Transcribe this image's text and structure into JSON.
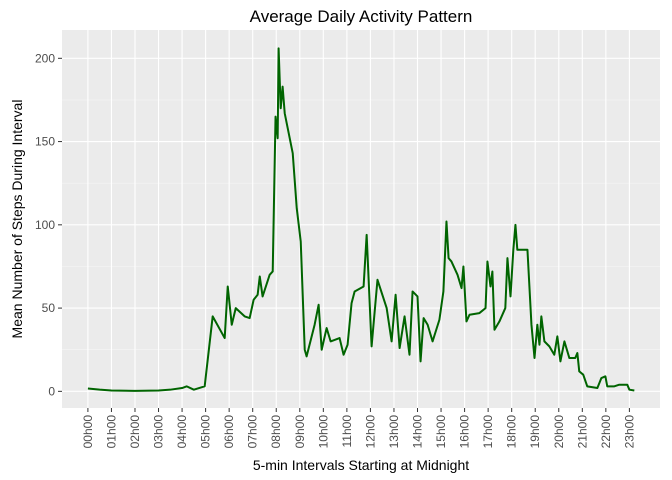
{
  "chart_data": {
    "type": "line",
    "title": "Average Daily Activity Pattern",
    "x_label": "5-min Intervals Starting at Midnight",
    "y_label": "Mean Number of Steps During Interval",
    "color": "#006400",
    "x": [
      0,
      0.5,
      1,
      2,
      3,
      3.5,
      4,
      4.2,
      4.5,
      4.96,
      5.3,
      5.81,
      5.94,
      6.11,
      6.28,
      6.66,
      6.87,
      7.04,
      7.21,
      7.3,
      7.42,
      7.72,
      7.85,
      7.97,
      8.06,
      8.1,
      8.19,
      8.27,
      8.36,
      8.7,
      8.87,
      9.04,
      9.21,
      9.29,
      9.63,
      9.8,
      9.93,
      10.14,
      10.31,
      10.69,
      10.86,
      11.03,
      11.2,
      11.33,
      11.71,
      11.79,
      11.84,
      12.05,
      12.3,
      12.69,
      12.9,
      13.07,
      13.24,
      13.45,
      13.66,
      13.79,
      14.0,
      14.13,
      14.26,
      14.43,
      14.64,
      14.93,
      15.1,
      15.23,
      15.32,
      15.44,
      15.7,
      15.87,
      15.95,
      16.08,
      16.21,
      16.63,
      16.89,
      16.97,
      17.1,
      17.18,
      17.27,
      17.48,
      17.73,
      17.82,
      17.95,
      18.07,
      18.16,
      18.24,
      18.67,
      18.84,
      18.97,
      19.09,
      19.18,
      19.26,
      19.39,
      19.6,
      19.81,
      19.94,
      20.07,
      20.24,
      20.45,
      20.7,
      20.79,
      20.87,
      21.04,
      21.21,
      21.64,
      21.81,
      21.98,
      22.06,
      22.36,
      22.57,
      22.91,
      23.0,
      23.21
    ],
    "values": [
      1.7,
      1,
      0.5,
      0.3,
      0.5,
      1,
      2,
      3,
      1,
      3,
      45,
      32,
      63,
      40,
      50,
      45,
      44,
      55,
      58,
      69,
      57,
      70,
      72,
      165,
      152,
      206,
      170,
      183,
      167,
      143,
      110,
      90,
      25,
      21,
      40,
      52,
      25,
      38,
      30,
      32,
      22,
      28,
      53,
      60,
      63,
      82,
      94,
      27,
      67,
      50,
      30,
      58,
      26,
      45,
      22,
      60,
      57,
      18,
      44,
      40,
      30,
      43,
      60,
      102,
      80,
      78,
      70,
      62,
      75,
      42,
      46,
      47,
      50,
      78,
      63,
      72,
      37,
      42,
      50,
      80,
      57,
      85,
      100,
      85,
      85,
      40,
      20,
      40,
      28,
      45,
      30,
      27,
      22,
      33,
      18,
      30,
      20,
      20,
      23,
      12,
      10,
      3,
      2,
      8,
      9,
      3,
      3,
      4,
      4,
      1,
      0.5
    ],
    "xlim": [
      -1.1,
      24.3
    ],
    "ylim": [
      -10,
      217
    ],
    "xticks": [
      {
        "value": 0,
        "label": "00h00"
      },
      {
        "value": 1,
        "label": "01h00"
      },
      {
        "value": 2,
        "label": "02h00"
      },
      {
        "value": 3,
        "label": "03h00"
      },
      {
        "value": 4,
        "label": "04h00"
      },
      {
        "value": 5,
        "label": "05h00"
      },
      {
        "value": 6,
        "label": "06h00"
      },
      {
        "value": 7,
        "label": "07h00"
      },
      {
        "value": 8,
        "label": "08h00"
      },
      {
        "value": 9,
        "label": "09h00"
      },
      {
        "value": 10,
        "label": "10h00"
      },
      {
        "value": 11,
        "label": "11h00"
      },
      {
        "value": 12,
        "label": "12h00"
      },
      {
        "value": 13,
        "label": "13h00"
      },
      {
        "value": 14,
        "label": "14h00"
      },
      {
        "value": 15,
        "label": "15h00"
      },
      {
        "value": 16,
        "label": "16h00"
      },
      {
        "value": 17,
        "label": "17h00"
      },
      {
        "value": 18,
        "label": "18h00"
      },
      {
        "value": 19,
        "label": "19h00"
      },
      {
        "value": 20,
        "label": "20h00"
      },
      {
        "value": 21,
        "label": "21h00"
      },
      {
        "value": 22,
        "label": "22h00"
      },
      {
        "value": 23,
        "label": "23h00"
      }
    ],
    "yticks": [
      0,
      50,
      100,
      150,
      200
    ],
    "grid": true
  }
}
